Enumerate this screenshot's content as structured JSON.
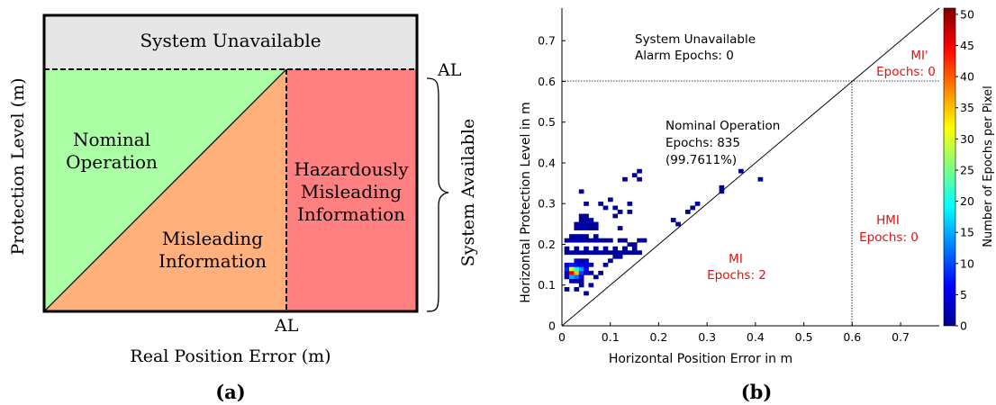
{
  "panel_a": {
    "caption": "(a)",
    "y_label": "Protection Level (m)",
    "x_label": "Real Position Error (m)",
    "al_top": "AL",
    "al_bottom": "AL",
    "unavailable_label": "System Unavailable",
    "available_label": "System Available",
    "nominal_line1": "Nominal",
    "nominal_line2": "Operation",
    "mi_line1": "Misleading",
    "mi_line2": "Information",
    "hmi_line1": "Hazardously",
    "hmi_line2": "Misleading",
    "hmi_line3": "Information",
    "colors": {
      "unavailable": "#e6e6e6",
      "nominal": "#aaffa4",
      "mi": "#ffb07c",
      "hmi": "#ff8080"
    }
  },
  "panel_b": {
    "caption": "(b)",
    "region_labels": {
      "unavailable_line1": "System Unavailable",
      "unavailable_line2": "Alarm Epochs: 0",
      "nominal_line1": "Nominal Operation",
      "nominal_line2": "Epochs: 835",
      "nominal_line3": "(99.7611%)",
      "mi_prime_line1": "MI'",
      "mi_prime_line2": "Epochs: 0",
      "hmi_line1": "HMI",
      "hmi_line2": "Epochs: 0",
      "mi_line1": "MI",
      "mi_line2": "Epochs: 2"
    },
    "label_color_red": "#e01010"
  },
  "chart_data": {
    "type": "heatmap",
    "xlabel": "Horizontal Position Error in m",
    "ylabel": "Horizontal Protection Level in m",
    "xlim": [
      0,
      0.78
    ],
    "ylim": [
      0,
      0.78
    ],
    "x_ticks": [
      "0",
      "0.1",
      "0.2",
      "0.3",
      "0.4",
      "0.5",
      "0.6",
      "0.7"
    ],
    "y_ticks": [
      "0",
      "0.1",
      "0.2",
      "0.3",
      "0.4",
      "0.5",
      "0.6",
      "0.7"
    ],
    "alert_limit": 0.6,
    "colorbar": {
      "label": "Number of Epochs per Pixel",
      "min": 0,
      "max": 51,
      "ticks": [
        "0",
        "5",
        "10",
        "15",
        "20",
        "25",
        "30",
        "35",
        "40",
        "45",
        "50"
      ]
    },
    "cells": [
      [
        0.01,
        0.13,
        3
      ],
      [
        0.01,
        0.14,
        8
      ],
      [
        0.01,
        0.15,
        4
      ],
      [
        0.01,
        0.12,
        3
      ],
      [
        0.02,
        0.13,
        45
      ],
      [
        0.02,
        0.14,
        30
      ],
      [
        0.02,
        0.12,
        15
      ],
      [
        0.02,
        0.15,
        8
      ],
      [
        0.02,
        0.11,
        3
      ],
      [
        0.03,
        0.13,
        35
      ],
      [
        0.03,
        0.14,
        20
      ],
      [
        0.03,
        0.12,
        12
      ],
      [
        0.03,
        0.15,
        6
      ],
      [
        0.03,
        0.16,
        3
      ],
      [
        0.03,
        0.11,
        2
      ],
      [
        0.04,
        0.13,
        10
      ],
      [
        0.04,
        0.14,
        14
      ],
      [
        0.04,
        0.15,
        5
      ],
      [
        0.04,
        0.12,
        4
      ],
      [
        0.04,
        0.16,
        2
      ],
      [
        0.04,
        0.11,
        2
      ],
      [
        0.05,
        0.14,
        6
      ],
      [
        0.05,
        0.15,
        5
      ],
      [
        0.05,
        0.13,
        3
      ],
      [
        0.05,
        0.16,
        2
      ],
      [
        0.06,
        0.15,
        2
      ],
      [
        0.06,
        0.13,
        1
      ],
      [
        0.01,
        0.18,
        1
      ],
      [
        0.02,
        0.18,
        2
      ],
      [
        0.03,
        0.18,
        2
      ],
      [
        0.04,
        0.18,
        2
      ],
      [
        0.05,
        0.18,
        1
      ],
      [
        0.06,
        0.18,
        2
      ],
      [
        0.07,
        0.18,
        2
      ],
      [
        0.08,
        0.18,
        2
      ],
      [
        0.09,
        0.18,
        1
      ],
      [
        0.1,
        0.18,
        1
      ],
      [
        0.11,
        0.18,
        2
      ],
      [
        0.12,
        0.18,
        2
      ],
      [
        0.13,
        0.18,
        2
      ],
      [
        0.14,
        0.18,
        1
      ],
      [
        0.15,
        0.18,
        2
      ],
      [
        0.16,
        0.18,
        1
      ],
      [
        0.01,
        0.19,
        1
      ],
      [
        0.03,
        0.19,
        1
      ],
      [
        0.05,
        0.19,
        2
      ],
      [
        0.07,
        0.19,
        1
      ],
      [
        0.09,
        0.19,
        1
      ],
      [
        0.11,
        0.19,
        1
      ],
      [
        0.13,
        0.19,
        1
      ],
      [
        0.15,
        0.19,
        1
      ],
      [
        0.01,
        0.21,
        1
      ],
      [
        0.02,
        0.21,
        2
      ],
      [
        0.03,
        0.21,
        2
      ],
      [
        0.04,
        0.21,
        2
      ],
      [
        0.05,
        0.21,
        1
      ],
      [
        0.06,
        0.21,
        2
      ],
      [
        0.07,
        0.21,
        2
      ],
      [
        0.08,
        0.21,
        1
      ],
      [
        0.09,
        0.21,
        1
      ],
      [
        0.1,
        0.21,
        1
      ],
      [
        0.12,
        0.21,
        1
      ],
      [
        0.13,
        0.21,
        1
      ],
      [
        0.02,
        0.22,
        1
      ],
      [
        0.03,
        0.22,
        2
      ],
      [
        0.04,
        0.22,
        2
      ],
      [
        0.05,
        0.22,
        1
      ],
      [
        0.07,
        0.22,
        1
      ],
      [
        0.03,
        0.24,
        1
      ],
      [
        0.04,
        0.24,
        2
      ],
      [
        0.05,
        0.24,
        2
      ],
      [
        0.06,
        0.24,
        1
      ],
      [
        0.07,
        0.24,
        1
      ],
      [
        0.03,
        0.25,
        2
      ],
      [
        0.04,
        0.25,
        2
      ],
      [
        0.05,
        0.25,
        2
      ],
      [
        0.06,
        0.25,
        1
      ],
      [
        0.07,
        0.25,
        2
      ],
      [
        0.04,
        0.26,
        1
      ],
      [
        0.05,
        0.26,
        1
      ],
      [
        0.06,
        0.26,
        2
      ],
      [
        0.04,
        0.27,
        1
      ],
      [
        0.05,
        0.27,
        1
      ],
      [
        0.05,
        0.3,
        1
      ],
      [
        0.08,
        0.3,
        1
      ],
      [
        0.14,
        0.3,
        1
      ],
      [
        0.04,
        0.33,
        1
      ],
      [
        0.1,
        0.31,
        1
      ],
      [
        0.11,
        0.27,
        1
      ],
      [
        0.12,
        0.24,
        1
      ],
      [
        0.13,
        0.36,
        1
      ],
      [
        0.16,
        0.36,
        1
      ],
      [
        0.15,
        0.37,
        1
      ],
      [
        0.16,
        0.38,
        1
      ],
      [
        0.09,
        0.29,
        1
      ],
      [
        0.11,
        0.29,
        1
      ],
      [
        0.12,
        0.28,
        1
      ],
      [
        0.14,
        0.28,
        1
      ],
      [
        0.17,
        0.21,
        1
      ],
      [
        0.01,
        0.09,
        1
      ],
      [
        0.03,
        0.09,
        1
      ],
      [
        0.04,
        0.1,
        1
      ],
      [
        0.05,
        0.08,
        1
      ],
      [
        0.06,
        0.1,
        1
      ],
      [
        0.07,
        0.12,
        1
      ],
      [
        0.08,
        0.13,
        1
      ],
      [
        0.09,
        0.15,
        1
      ],
      [
        0.1,
        0.16,
        1
      ],
      [
        0.11,
        0.17,
        1
      ],
      [
        0.12,
        0.17,
        1
      ],
      [
        0.13,
        0.19,
        1
      ],
      [
        0.14,
        0.2,
        1
      ],
      [
        0.15,
        0.2,
        1
      ],
      [
        0.16,
        0.21,
        1
      ],
      [
        0.23,
        0.26,
        1
      ],
      [
        0.24,
        0.25,
        1
      ],
      [
        0.26,
        0.28,
        1
      ],
      [
        0.27,
        0.29,
        1
      ],
      [
        0.28,
        0.3,
        1
      ],
      [
        0.33,
        0.33,
        2
      ],
      [
        0.33,
        0.34,
        1
      ],
      [
        0.37,
        0.38,
        1
      ],
      [
        0.41,
        0.36,
        1
      ]
    ]
  }
}
